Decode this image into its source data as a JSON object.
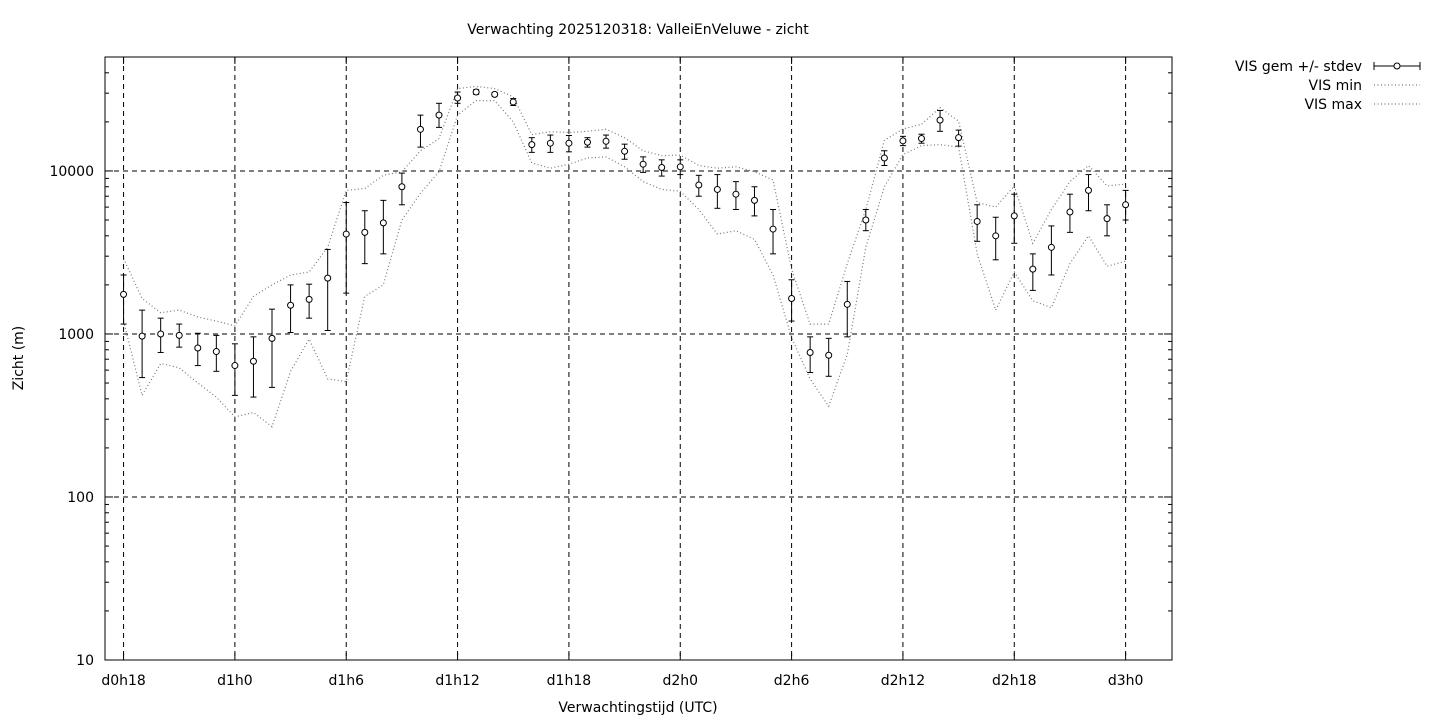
{
  "chart_data": {
    "type": "scatter",
    "title": "Verwachting 2025120318: ValleiEnVeluwe - zicht",
    "xlabel": "Verwachtingstijd (UTC)",
    "ylabel": "Zicht (m)",
    "y_scale": "log",
    "ylim": [
      10,
      50000
    ],
    "xlim_hours": [
      -1,
      56.5
    ],
    "x_unit": "hours since d0h18",
    "x_ticks": [
      {
        "label": "d0h18",
        "x": 0
      },
      {
        "label": "d1h0",
        "x": 6
      },
      {
        "label": "d1h6",
        "x": 12
      },
      {
        "label": "d1h12",
        "x": 18
      },
      {
        "label": "d1h18",
        "x": 24
      },
      {
        "label": "d2h0",
        "x": 30
      },
      {
        "label": "d2h6",
        "x": 36
      },
      {
        "label": "d2h12",
        "x": 42
      },
      {
        "label": "d2h18",
        "x": 48
      },
      {
        "label": "d3h0",
        "x": 54
      }
    ],
    "y_ticks": [
      10,
      100,
      1000,
      10000
    ],
    "grid": true,
    "grid_style": "dashed",
    "legend_position": "top-right outside",
    "series": [
      {
        "name": "VIS gem +/- stdev",
        "style": "errorbars",
        "x": [
          0,
          1,
          2,
          3,
          4,
          5,
          6,
          7,
          8,
          9,
          10,
          11,
          12,
          13,
          14,
          15,
          16,
          17,
          18,
          19,
          20,
          21,
          22,
          23,
          24,
          25,
          26,
          27,
          28,
          29,
          30,
          31,
          32,
          33,
          34,
          35,
          36,
          37,
          38,
          39,
          40,
          41,
          42,
          43,
          44,
          45,
          46,
          47,
          48,
          49,
          50,
          51,
          52,
          53,
          54
        ],
        "mean": [
          1750,
          970,
          1000,
          980,
          820,
          780,
          640,
          680,
          940,
          1500,
          1630,
          2200,
          4100,
          4200,
          4800,
          8000,
          18000,
          22000,
          28000,
          30500,
          29500,
          26500,
          14500,
          14800,
          14800,
          15000,
          15200,
          13200,
          11000,
          10500,
          10600,
          8200,
          7700,
          7200,
          6600,
          4400,
          1650,
          770,
          740,
          1520,
          5000,
          12000,
          15300,
          15800,
          20500,
          16000,
          4900,
          4000,
          5300,
          2500,
          3400,
          5600,
          7600,
          5100,
          6200
        ],
        "low": [
          1150,
          540,
          770,
          830,
          640,
          590,
          420,
          410,
          470,
          1020,
          1250,
          1050,
          1780,
          2700,
          3100,
          6200,
          14000,
          18500,
          26000,
          29500,
          28800,
          25200,
          13000,
          13000,
          13100,
          14000,
          13800,
          11800,
          9800,
          9300,
          9500,
          7000,
          5900,
          5800,
          5300,
          3100,
          1200,
          580,
          550,
          960,
          4300,
          10800,
          14300,
          14800,
          17500,
          14200,
          3700,
          2850,
          3600,
          1850,
          2300,
          4200,
          5700,
          4000,
          5000
        ],
        "high": [
          2300,
          1400,
          1250,
          1150,
          1010,
          980,
          870,
          960,
          1420,
          2000,
          2020,
          3300,
          6400,
          5700,
          6600,
          9700,
          22000,
          26000,
          30500,
          31500,
          30200,
          27800,
          16000,
          16600,
          16500,
          16000,
          16600,
          14600,
          12200,
          11700,
          11700,
          9400,
          9500,
          8600,
          8000,
          5800,
          2150,
          960,
          940,
          2100,
          5800,
          13300,
          16300,
          16800,
          23500,
          17800,
          6200,
          5200,
          7200,
          3100,
          4600,
          7200,
          9500,
          6200,
          7600
        ]
      },
      {
        "name": "VIS min",
        "style": "dotted",
        "x": [
          0,
          1,
          2,
          3,
          4,
          5,
          6,
          7,
          8,
          9,
          10,
          11,
          12,
          13,
          14,
          15,
          16,
          17,
          18,
          19,
          20,
          21,
          22,
          23,
          24,
          25,
          26,
          27,
          28,
          29,
          30,
          31,
          32,
          33,
          34,
          35,
          36,
          37,
          38,
          39,
          40,
          41,
          42,
          43,
          44,
          45,
          46,
          47,
          48,
          49,
          50,
          51,
          52,
          53,
          54
        ],
        "values": [
          1200,
          420,
          660,
          620,
          500,
          410,
          310,
          330,
          270,
          590,
          930,
          530,
          510,
          1700,
          2000,
          5000,
          7300,
          9900,
          22000,
          27000,
          27000,
          20000,
          11200,
          10400,
          11000,
          12000,
          12200,
          10600,
          8600,
          7700,
          7500,
          5800,
          4100,
          4300,
          3800,
          2300,
          950,
          530,
          360,
          750,
          3400,
          8000,
          12600,
          14300,
          14500,
          14000,
          3100,
          1400,
          2400,
          1600,
          1450,
          2700,
          4000,
          2600,
          2800
        ]
      },
      {
        "name": "VIS max",
        "style": "dotted",
        "x": [
          0,
          1,
          2,
          3,
          4,
          5,
          6,
          7,
          8,
          9,
          10,
          11,
          12,
          13,
          14,
          15,
          16,
          17,
          18,
          19,
          20,
          21,
          22,
          23,
          24,
          25,
          26,
          27,
          28,
          29,
          30,
          31,
          32,
          33,
          34,
          35,
          36,
          37,
          38,
          39,
          40,
          41,
          42,
          43,
          44,
          45,
          46,
          47,
          48,
          49,
          50,
          51,
          52,
          53,
          54
        ],
        "values": [
          2900,
          1650,
          1350,
          1400,
          1270,
          1200,
          1120,
          1700,
          2000,
          2300,
          2400,
          3400,
          7600,
          7800,
          9400,
          9900,
          13300,
          15800,
          32000,
          33000,
          32000,
          28500,
          16700,
          17400,
          17200,
          17500,
          18000,
          16000,
          13300,
          12400,
          12500,
          10800,
          10400,
          10600,
          9900,
          8800,
          2500,
          1150,
          1150,
          2700,
          5800,
          15400,
          18100,
          19300,
          24500,
          20200,
          6400,
          6000,
          8100,
          3600,
          5800,
          8600,
          10800,
          8100,
          8300
        ]
      }
    ]
  }
}
